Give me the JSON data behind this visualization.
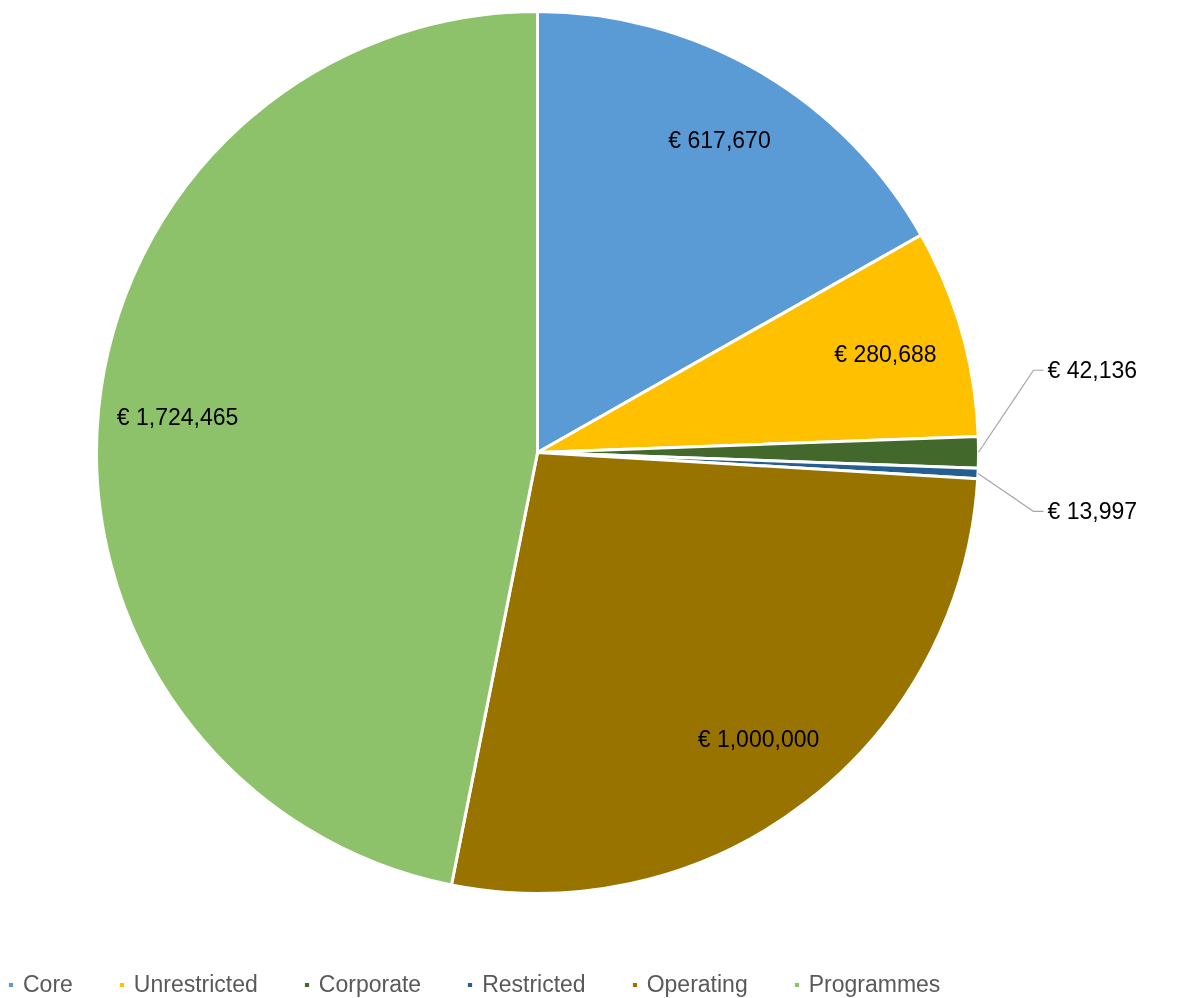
{
  "chart_data": {
    "type": "pie",
    "categories": [
      "Core",
      "Unrestricted",
      "Corporate",
      "Restricted",
      "Operating",
      "Programmes"
    ],
    "values": [
      617670,
      280688,
      42136,
      13997,
      1000000,
      1724465
    ],
    "colors": [
      "#5b9bd5",
      "#ffc000",
      "#43682b",
      "#255e91",
      "#997300",
      "#8dc16a"
    ],
    "value_labels": [
      "€ 617,670",
      "€ 280,688",
      "€ 42,136",
      "€ 13,997",
      "€ 1,000,000",
      "€ 1,724,465"
    ],
    "legend": "bottom"
  }
}
